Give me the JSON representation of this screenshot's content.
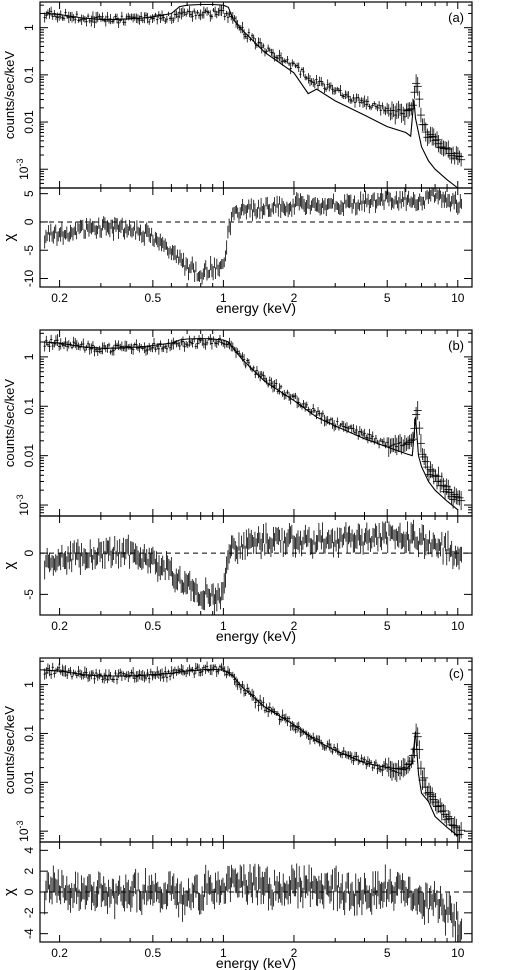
{
  "figure": {
    "colors": {
      "ink": "#000000",
      "background": "#ffffff"
    },
    "panels": [
      {
        "label": "(a)",
        "spectrum": {
          "type": "line",
          "ylabel": "counts/sec/keV",
          "y_ticks": [
            {
              "v": 1,
              "t": "1"
            },
            {
              "v": 0.1,
              "t": "0.1"
            },
            {
              "v": 0.01,
              "t": "0.01"
            },
            {
              "v": 0.001,
              "t": "10-3"
            }
          ],
          "ylim": [
            0.0004,
            3.5
          ],
          "log_y": true,
          "data_energy_keV": [
            0.17,
            0.2,
            0.25,
            0.3,
            0.35,
            0.4,
            0.45,
            0.5,
            0.6,
            0.7,
            0.8,
            0.9,
            1.0,
            1.1,
            1.2,
            1.5,
            2.0,
            2.5,
            3.0,
            4.0,
            5.0,
            6.0,
            6.4,
            6.7,
            7.0,
            7.5,
            8.0,
            9.0,
            10.0
          ],
          "data_counts": [
            2.0,
            1.9,
            1.6,
            1.5,
            1.5,
            1.5,
            1.55,
            1.6,
            1.7,
            1.9,
            2.0,
            2.05,
            2.0,
            1.5,
            0.9,
            0.35,
            0.15,
            0.07,
            0.045,
            0.025,
            0.018,
            0.015,
            0.02,
            0.08,
            0.012,
            0.005,
            0.004,
            0.0025,
            0.0018
          ],
          "model_energy_keV": [
            0.17,
            0.2,
            0.25,
            0.3,
            0.35,
            0.4,
            0.45,
            0.5,
            0.6,
            0.65,
            0.7,
            0.8,
            0.9,
            1.0,
            1.05,
            1.1,
            1.2,
            1.5,
            2.0,
            2.3,
            2.5,
            3.0,
            4.0,
            5.0,
            6.0,
            6.3,
            6.5,
            6.6,
            6.8,
            7.0,
            7.5,
            8.0,
            9.0,
            10.0
          ],
          "model_counts": [
            2.0,
            1.9,
            1.6,
            1.5,
            1.5,
            1.55,
            1.6,
            1.7,
            2.0,
            2.8,
            3.0,
            3.1,
            3.1,
            3.0,
            2.7,
            1.5,
            0.9,
            0.3,
            0.11,
            0.04,
            0.05,
            0.028,
            0.014,
            0.008,
            0.006,
            0.005,
            0.03,
            0.012,
            0.006,
            0.003,
            0.0015,
            0.001,
            0.0006,
            0.0004
          ]
        },
        "residuals": {
          "type": "scatter",
          "ylabel": "χ",
          "y_ticks": [
            {
              "v": 5,
              "t": "5"
            },
            {
              "v": 0,
              "t": "0"
            },
            {
              "v": -5,
              "t": "-5"
            },
            {
              "v": -10,
              "t": "-10"
            }
          ],
          "ylim": [
            -11.5,
            6
          ],
          "energy_keV": [
            0.17,
            0.2,
            0.25,
            0.3,
            0.35,
            0.4,
            0.45,
            0.5,
            0.55,
            0.6,
            0.65,
            0.7,
            0.75,
            0.8,
            0.85,
            0.9,
            0.95,
            1.0,
            1.05,
            1.1,
            1.2,
            1.5,
            2.0,
            3.0,
            4.0,
            5.0,
            6.0,
            7.0,
            8.0,
            9.0,
            10.0
          ],
          "chi": [
            -2.5,
            -2.0,
            -1.5,
            -1.0,
            -1.0,
            -1.5,
            -2.0,
            -3.0,
            -4.0,
            -5.5,
            -7.0,
            -8.0,
            -8.5,
            -9.0,
            -8.5,
            -8.0,
            -8.5,
            -8.0,
            -2.0,
            1.0,
            2.0,
            2.5,
            3.0,
            3.0,
            3.5,
            4.0,
            4.0,
            4.0,
            4.5,
            4.0,
            3.0
          ]
        }
      },
      {
        "label": "(b)",
        "spectrum": {
          "type": "line",
          "ylabel": "counts/sec/keV",
          "y_ticks": [
            {
              "v": 1,
              "t": "1"
            },
            {
              "v": 0.1,
              "t": "0.1"
            },
            {
              "v": 0.01,
              "t": "0.01"
            },
            {
              "v": 0.001,
              "t": "10-3"
            }
          ],
          "ylim": [
            0.0006,
            3.5
          ],
          "log_y": true,
          "data_energy_keV": [
            0.17,
            0.2,
            0.25,
            0.3,
            0.35,
            0.4,
            0.45,
            0.5,
            0.6,
            0.7,
            0.8,
            0.9,
            1.0,
            1.1,
            1.2,
            1.5,
            2.0,
            2.5,
            3.0,
            4.0,
            5.0,
            6.0,
            6.4,
            6.7,
            7.0,
            7.5,
            8.0,
            9.0,
            10.0
          ],
          "data_counts": [
            2.0,
            1.9,
            1.6,
            1.5,
            1.5,
            1.5,
            1.55,
            1.6,
            1.7,
            1.9,
            2.0,
            2.05,
            2.0,
            1.5,
            0.9,
            0.35,
            0.15,
            0.07,
            0.045,
            0.025,
            0.018,
            0.015,
            0.02,
            0.1,
            0.012,
            0.005,
            0.004,
            0.002,
            0.0012
          ],
          "model_energy_keV": [
            0.17,
            0.2,
            0.25,
            0.3,
            0.35,
            0.4,
            0.45,
            0.5,
            0.6,
            0.65,
            0.7,
            0.8,
            0.9,
            1.0,
            1.05,
            1.1,
            1.2,
            1.5,
            2.0,
            2.5,
            3.0,
            4.0,
            5.0,
            6.0,
            6.4,
            6.6,
            6.8,
            7.0,
            7.5,
            8.0,
            9.0,
            10.0
          ],
          "model_counts": [
            2.0,
            1.9,
            1.6,
            1.5,
            1.5,
            1.55,
            1.6,
            1.7,
            1.9,
            2.2,
            2.3,
            2.35,
            2.3,
            2.2,
            2.0,
            1.5,
            0.9,
            0.32,
            0.13,
            0.06,
            0.04,
            0.022,
            0.015,
            0.011,
            0.01,
            0.06,
            0.01,
            0.006,
            0.003,
            0.002,
            0.0012,
            0.0008
          ]
        },
        "residuals": {
          "type": "scatter",
          "ylabel": "χ",
          "y_ticks": [
            {
              "v": 0,
              "t": "0"
            },
            {
              "v": -5,
              "t": "-5"
            }
          ],
          "ylim": [
            -7.5,
            4.5
          ],
          "energy_keV": [
            0.17,
            0.2,
            0.25,
            0.3,
            0.35,
            0.4,
            0.45,
            0.5,
            0.55,
            0.6,
            0.65,
            0.7,
            0.75,
            0.8,
            0.85,
            0.9,
            0.95,
            1.0,
            1.05,
            1.1,
            1.2,
            1.5,
            2.0,
            3.0,
            4.0,
            5.0,
            6.0,
            7.0,
            8.0,
            9.0,
            10.0
          ],
          "chi": [
            -1.0,
            -0.5,
            -0.3,
            0.0,
            0.2,
            0.0,
            -0.5,
            -1.0,
            -1.5,
            -2.5,
            -3.5,
            -4.0,
            -4.5,
            -5.0,
            -5.0,
            -5.5,
            -5.0,
            -5.0,
            -1.0,
            0.5,
            1.0,
            1.5,
            1.5,
            1.5,
            1.5,
            2.0,
            2.0,
            1.5,
            1.0,
            0.5,
            0.0
          ]
        }
      },
      {
        "label": "(c)",
        "spectrum": {
          "type": "line",
          "ylabel": "counts/sec/keV",
          "y_ticks": [
            {
              "v": 1,
              "t": "1"
            },
            {
              "v": 0.1,
              "t": "0.1"
            },
            {
              "v": 0.01,
              "t": "0.01"
            },
            {
              "v": 0.001,
              "t": "10-3"
            }
          ],
          "ylim": [
            0.0006,
            3.5
          ],
          "log_y": true,
          "data_energy_keV": [
            0.17,
            0.2,
            0.25,
            0.3,
            0.35,
            0.4,
            0.45,
            0.5,
            0.6,
            0.7,
            0.8,
            0.9,
            1.0,
            1.1,
            1.2,
            1.5,
            2.0,
            2.5,
            3.0,
            4.0,
            5.0,
            6.0,
            6.4,
            6.7,
            7.0,
            7.5,
            8.0,
            9.0,
            10.0
          ],
          "data_counts": [
            2.0,
            1.9,
            1.6,
            1.5,
            1.5,
            1.5,
            1.55,
            1.6,
            1.7,
            1.9,
            2.0,
            2.05,
            2.0,
            1.5,
            0.9,
            0.35,
            0.15,
            0.07,
            0.045,
            0.025,
            0.02,
            0.018,
            0.025,
            0.12,
            0.015,
            0.006,
            0.004,
            0.002,
            0.0009
          ],
          "model_energy_keV": [
            0.17,
            0.2,
            0.25,
            0.3,
            0.35,
            0.4,
            0.45,
            0.5,
            0.6,
            0.7,
            0.8,
            0.9,
            1.0,
            1.1,
            1.2,
            1.5,
            2.0,
            2.5,
            3.0,
            4.0,
            5.0,
            6.0,
            6.4,
            6.6,
            6.8,
            7.0,
            7.5,
            8.0,
            9.0,
            10.0
          ],
          "model_counts": [
            2.0,
            1.9,
            1.6,
            1.5,
            1.5,
            1.5,
            1.55,
            1.6,
            1.7,
            1.9,
            2.0,
            2.05,
            2.0,
            1.5,
            0.9,
            0.35,
            0.15,
            0.07,
            0.045,
            0.025,
            0.02,
            0.018,
            0.025,
            0.11,
            0.015,
            0.006,
            0.004,
            0.002,
            0.0012,
            0.0008
          ]
        },
        "residuals": {
          "type": "scatter",
          "ylabel": "χ",
          "y_ticks": [
            {
              "v": 4,
              "t": "4"
            },
            {
              "v": 2,
              "t": "2"
            },
            {
              "v": 0,
              "t": "0"
            },
            {
              "v": -2,
              "t": "-2"
            },
            {
              "v": -4,
              "t": "-4"
            }
          ],
          "ylim": [
            -4.8,
            4.8
          ],
          "energy_keV": [
            0.17,
            0.2,
            0.25,
            0.3,
            0.35,
            0.4,
            0.45,
            0.5,
            0.55,
            0.6,
            0.65,
            0.7,
            0.75,
            0.8,
            0.85,
            0.9,
            0.95,
            1.0,
            1.05,
            1.1,
            1.2,
            1.5,
            2.0,
            3.0,
            4.0,
            5.0,
            6.0,
            7.0,
            8.0,
            9.0,
            10.0
          ],
          "chi": [
            0.0,
            0.5,
            -0.3,
            0.2,
            -0.5,
            0.3,
            -0.2,
            0.5,
            -0.5,
            0.2,
            -1.0,
            -0.5,
            0.3,
            -0.5,
            0.5,
            -0.3,
            0.2,
            0.5,
            1.0,
            0.5,
            0.8,
            0.3,
            0.5,
            0.2,
            -0.3,
            0.5,
            0.3,
            -1.5,
            -1.0,
            -2.0,
            -3.0
          ]
        }
      }
    ],
    "xaxis": {
      "label": "energy (keV)",
      "log": true,
      "xlim": [
        0.165,
        11.5
      ],
      "ticks": [
        {
          "v": 0.2,
          "t": "0.2"
        },
        {
          "v": 0.5,
          "t": "0.5"
        },
        {
          "v": 1,
          "t": "1"
        },
        {
          "v": 2,
          "t": "2"
        },
        {
          "v": 5,
          "t": "5"
        },
        {
          "v": 10,
          "t": "10"
        }
      ]
    }
  }
}
